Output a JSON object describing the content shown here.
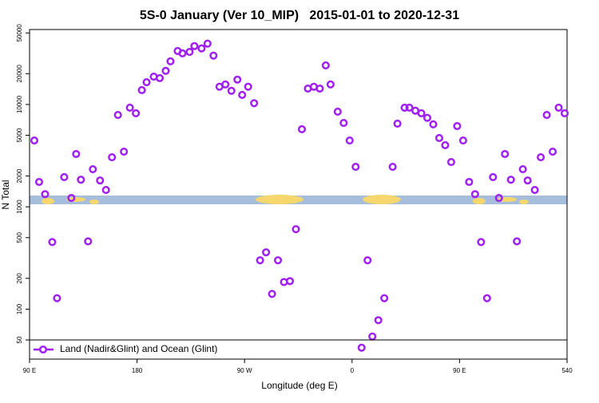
{
  "chart_data": {
    "type": "scatter",
    "title": "5S-0 January (Ver 10_MIP)   2015-01-01 to 2020-12-31",
    "x_label": "Longitude (deg E)",
    "y_label": "N Total",
    "log_y": true,
    "legend": "bottomleft",
    "xlim": [
      90,
      540
    ],
    "xticks": [
      {
        "value": 90,
        "label": "90 E"
      },
      180,
      {
        "value": 270,
        "label": "90 W"
      },
      {
        "value": 360,
        "label": "0"
      },
      {
        "value": 450,
        "label": "90 E"
      },
      540
    ],
    "ylim": [
      32.5,
      54000
    ],
    "yticks": [
      50,
      100,
      200,
      500,
      1000,
      2000,
      5000,
      10000,
      20000,
      50000
    ],
    "series": [
      {
        "name": "Land (Nadir&Glint) and Ocean (Glint)",
        "color": "#a020f0",
        "x": [
          94,
          98,
          103,
          109,
          113,
          119,
          125,
          129,
          133,
          139,
          143,
          149,
          154,
          159,
          164,
          169,
          174,
          179,
          184,
          188,
          194,
          199,
          204,
          208,
          214,
          218,
          224,
          228,
          234,
          239,
          244,
          249,
          254,
          259,
          264,
          268,
          273,
          278,
          283,
          288,
          293,
          298,
          303,
          308,
          313,
          318,
          323,
          328,
          333,
          338,
          342,
          348,
          353,
          358,
          363,
          368,
          373,
          377,
          382,
          387,
          394,
          398,
          404,
          408,
          413,
          418,
          423,
          428,
          433,
          438,
          443,
          448,
          453,
          458,
          463,
          468,
          473,
          478,
          483,
          488,
          493,
          498,
          503,
          507,
          513,
          518,
          523,
          528,
          533,
          538
        ],
        "values": [
          4450,
          1750,
          1330,
          453,
          128,
          1950,
          1220,
          3280,
          1840,
          460,
          2330,
          1810,
          1460,
          3050,
          7900,
          3460,
          9300,
          8200,
          13800,
          16500,
          18700,
          18100,
          21300,
          26400,
          33300,
          31600,
          32600,
          37200,
          35300,
          39300,
          30000,
          14900,
          15700,
          13600,
          17500,
          12400,
          14900,
          10300,
          300,
          359,
          141,
          300,
          184,
          188,
          605,
          5730,
          14300,
          14900,
          14300,
          24100,
          15700,
          8500,
          6600,
          4450,
          2460,
          42,
          300,
          54,
          78,
          128,
          2460,
          6500,
          9300,
          9300,
          8700,
          8200,
          7400,
          6400,
          4700,
          4000,
          2740,
          6150,
          4450,
          1750,
          1330,
          453,
          128,
          1950,
          1220,
          3280,
          1840,
          460,
          2330,
          1810,
          1460,
          3050,
          7900,
          3460,
          9300,
          8200
        ]
      }
    ]
  }
}
